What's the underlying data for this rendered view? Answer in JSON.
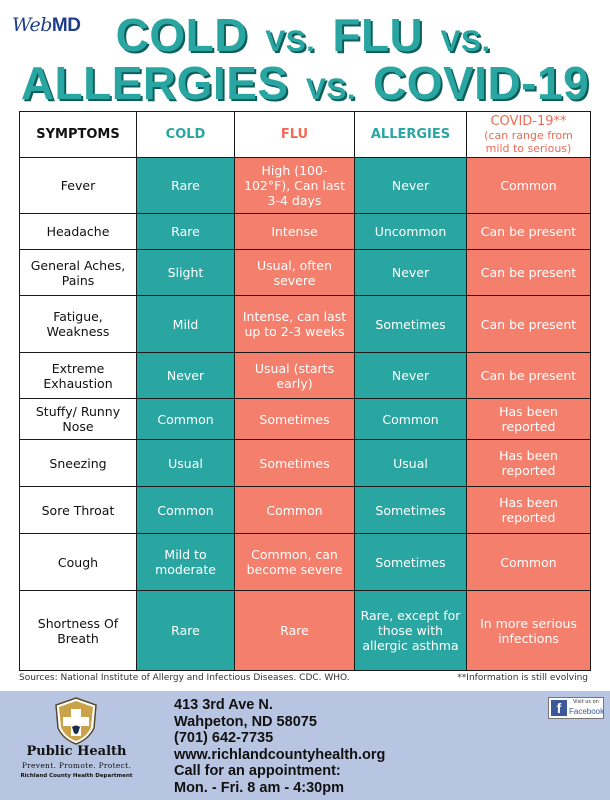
{
  "header": {
    "logo_web": "Web",
    "logo_md": "MD",
    "title_line1": {
      "a": "COLD",
      "vs1": "VS.",
      "b": "FLU",
      "vs2": "VS."
    },
    "title_line2": {
      "a": "ALLERGIES",
      "vs": "VS.",
      "b": "COVID-19"
    }
  },
  "table": {
    "headers": {
      "symptoms": "SYMPTOMS",
      "cold": "COLD",
      "flu": "FLU",
      "allergies": "ALLERGIES",
      "covid": "COVID-19**",
      "covid_sub": "(can range from mild to serious)"
    },
    "rows": [
      {
        "symptom": "Fever",
        "cold": "Rare",
        "flu": "High (100-102°F), Can last 3-4 days",
        "allergies": "Never",
        "covid": "Common"
      },
      {
        "symptom": "Headache",
        "cold": "Rare",
        "flu": "Intense",
        "allergies": "Uncommon",
        "covid": "Can be present"
      },
      {
        "symptom": "General Aches, Pains",
        "cold": "Slight",
        "flu": "Usual, often severe",
        "allergies": "Never",
        "covid": "Can be present"
      },
      {
        "symptom": "Fatigue, Weakness",
        "cold": "Mild",
        "flu": "Intense, can last up to 2-3 weeks",
        "allergies": "Sometimes",
        "covid": "Can be present"
      },
      {
        "symptom": "Extreme Exhaustion",
        "cold": "Never",
        "flu": "Usual (starts early)",
        "allergies": "Never",
        "covid": "Can be present"
      },
      {
        "symptom": "Stuffy/ Runny Nose",
        "cold": "Common",
        "flu": "Sometimes",
        "allergies": "Common",
        "covid": "Has been reported"
      },
      {
        "symptom": "Sneezing",
        "cold": "Usual",
        "flu": "Sometimes",
        "allergies": "Usual",
        "covid": "Has been reported"
      },
      {
        "symptom": "Sore Throat",
        "cold": "Common",
        "flu": "Common",
        "allergies": "Sometimes",
        "covid": "Has been reported"
      },
      {
        "symptom": "Cough",
        "cold": "Mild to moderate",
        "flu": "Common, can become severe",
        "allergies": "Sometimes",
        "covid": "Common"
      },
      {
        "symptom": "Shortness Of Breath",
        "cold": "Rare",
        "flu": "Rare",
        "allergies": "Rare, except for those with allergic asthma",
        "covid": "In more serious infections"
      }
    ]
  },
  "sources": "Sources: National Institute of Allergy and Infectious Diseases. CDC. WHO.",
  "note": "**Information is still evolving",
  "footer": {
    "org_name": "Public Health",
    "org_tagline": "Prevent. Promote. Protect.",
    "org_dept": "Richland County Health Department",
    "address1": "413 3rd Ave N.",
    "address2": "Wahpeton, ND 58075",
    "phone": "(701) 642-7735",
    "website": "www.richlandcountyhealth.org",
    "appointment": "Call for an appointment:",
    "hours": "Mon. - Fri. 8 am - 4:30pm",
    "facebook_small": "Visit us on",
    "facebook_big": "Facebook",
    "facebook_letter": "f"
  },
  "colors": {
    "teal": "#2aa6a2",
    "coral": "#f47f6c",
    "title_shadow": "#0d5f5c",
    "footer_bg": "#b8c5e2",
    "facebook_blue": "#3b5998"
  }
}
